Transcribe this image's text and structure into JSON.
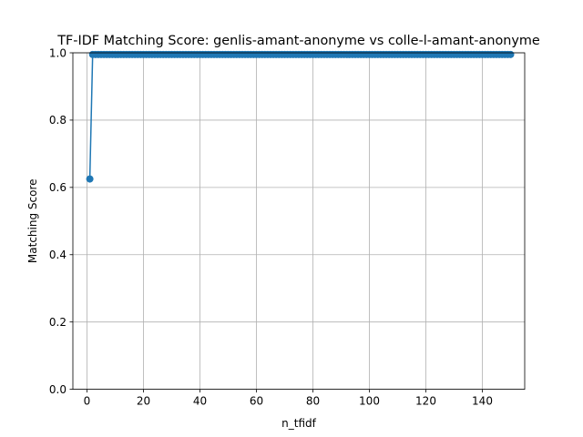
{
  "chart_data": {
    "type": "line",
    "title": "TF-IDF Matching Score: genlis-amant-anonyme vs colle-l-amant-anonyme",
    "xlabel": "n_tfidf",
    "ylabel": "Matching Score",
    "xlim": [
      -5,
      155
    ],
    "ylim": [
      0,
      1.0
    ],
    "xticks": [
      0,
      20,
      40,
      60,
      80,
      100,
      120,
      140
    ],
    "yticks": [
      0.0,
      0.2,
      0.4,
      0.6,
      0.8,
      1.0
    ],
    "xtick_labels": [
      "0",
      "20",
      "40",
      "60",
      "80",
      "100",
      "120",
      "140"
    ],
    "ytick_labels": [
      "0.0",
      "0.2",
      "0.4",
      "0.6",
      "0.8",
      "1.0"
    ],
    "grid": true,
    "marker": "circle",
    "series": [
      {
        "color": "#1f77b4",
        "x_start": 1,
        "x_end": 150,
        "x_step": 1,
        "first_value": 0.625,
        "remaining_value": 0.995
      }
    ]
  }
}
